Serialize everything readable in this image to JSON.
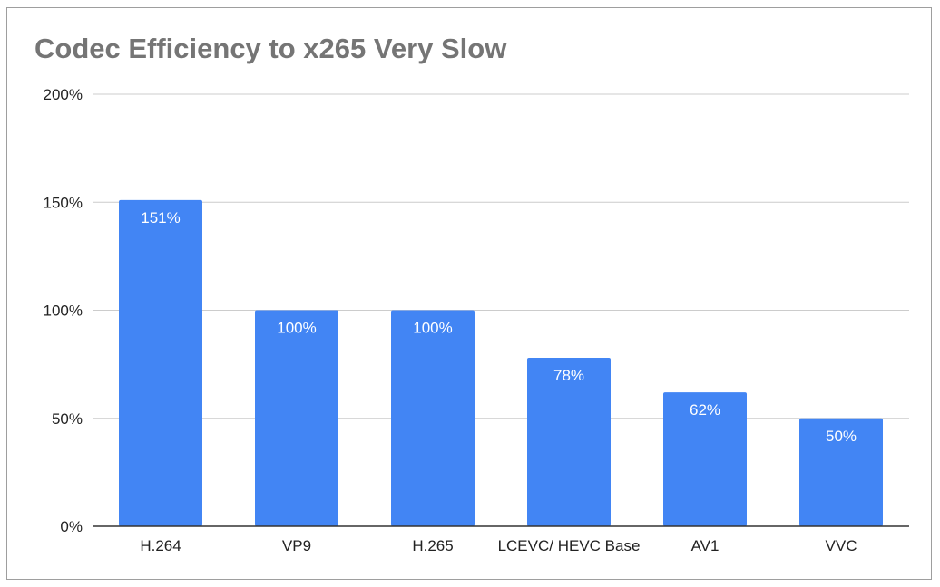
{
  "chart_data": {
    "type": "bar",
    "title": "Codec Efficiency to x265 Very Slow",
    "xlabel": "",
    "ylabel": "",
    "categories": [
      "H.264",
      "VP9",
      "H.265",
      "LCEVC/ HEVC Base",
      "AV1",
      "VVC"
    ],
    "values": [
      151,
      100,
      100,
      78,
      62,
      50
    ],
    "value_labels": [
      "151%",
      "100%",
      "100%",
      "78%",
      "62%",
      "50%"
    ],
    "ylim": [
      0,
      200
    ],
    "yticks": [
      0,
      50,
      100,
      150,
      200
    ],
    "ytick_labels": [
      "0%",
      "50%",
      "100%",
      "150%",
      "200%"
    ],
    "grid": true,
    "legend": "none",
    "bar_color": "#4285f4",
    "gridline_color": "#cccccc",
    "axis_color": "#333333"
  }
}
